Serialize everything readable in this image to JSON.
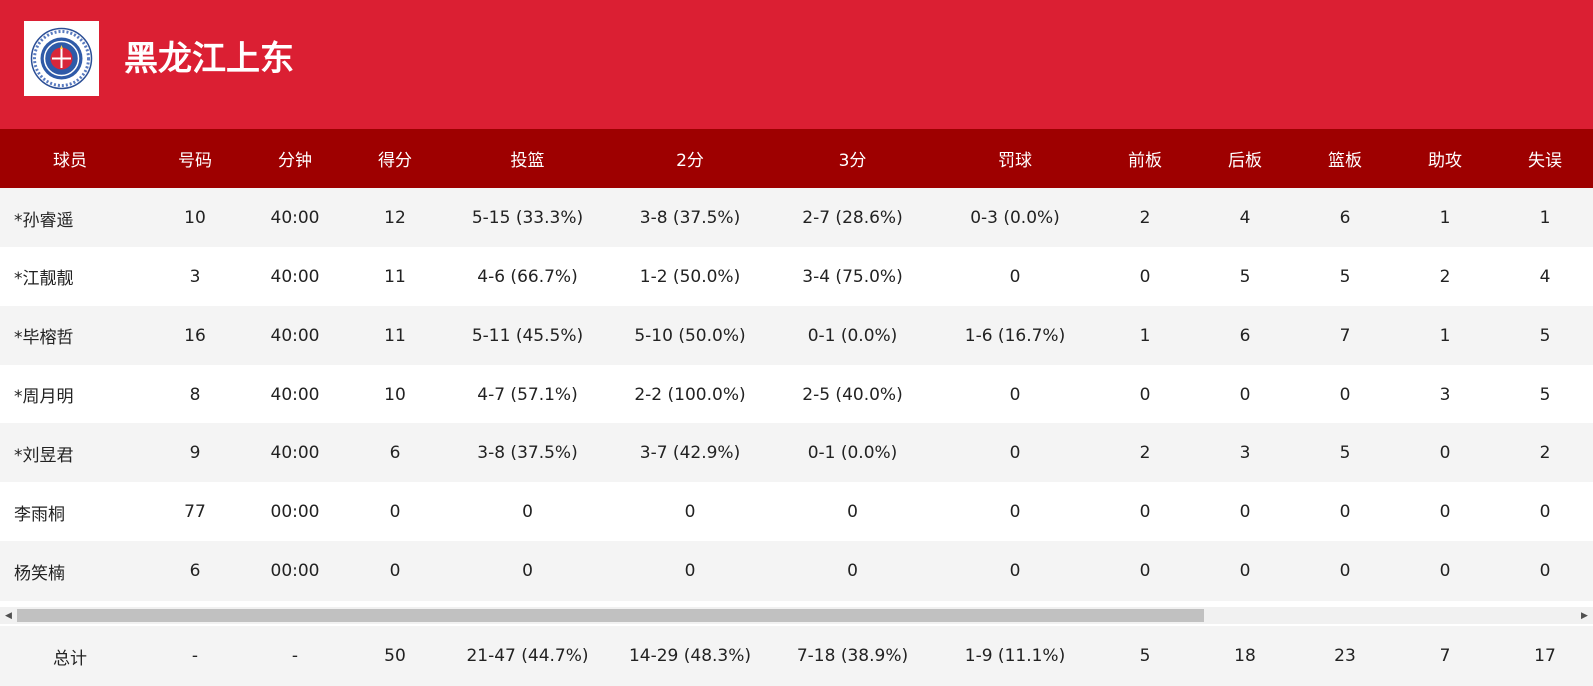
{
  "team": {
    "name": "黑龙江上东",
    "logo_icon": "team-crest-icon",
    "header_color": "#db1f33"
  },
  "table": {
    "header_color": "#9e0000",
    "columns": [
      "球员",
      "号码",
      "分钟",
      "得分",
      "投篮",
      "2分",
      "3分",
      "罚球",
      "前板",
      "后板",
      "篮板",
      "助攻",
      "失误"
    ],
    "rows": [
      [
        "*孙睿遥",
        "10",
        "40:00",
        "12",
        "5-15 (33.3%)",
        "3-8 (37.5%)",
        "2-7 (28.6%)",
        "0-3 (0.0%)",
        "2",
        "4",
        "6",
        "1",
        "1"
      ],
      [
        "*江靓靓",
        "3",
        "40:00",
        "11",
        "4-6 (66.7%)",
        "1-2 (50.0%)",
        "3-4 (75.0%)",
        "0",
        "0",
        "5",
        "5",
        "2",
        "4"
      ],
      [
        "*毕榕哲",
        "16",
        "40:00",
        "11",
        "5-11 (45.5%)",
        "5-10 (50.0%)",
        "0-1 (0.0%)",
        "1-6 (16.7%)",
        "1",
        "6",
        "7",
        "1",
        "5"
      ],
      [
        "*周月明",
        "8",
        "40:00",
        "10",
        "4-7 (57.1%)",
        "2-2 (100.0%)",
        "2-5 (40.0%)",
        "0",
        "0",
        "0",
        "0",
        "3",
        "5"
      ],
      [
        "*刘昱君",
        "9",
        "40:00",
        "6",
        "3-8 (37.5%)",
        "3-7 (42.9%)",
        "0-1 (0.0%)",
        "0",
        "2",
        "3",
        "5",
        "0",
        "2"
      ],
      [
        "李雨桐",
        "77",
        "00:00",
        "0",
        "0",
        "0",
        "0",
        "0",
        "0",
        "0",
        "0",
        "0",
        "0"
      ],
      [
        "杨笑楠",
        "6",
        "00:00",
        "0",
        "0",
        "0",
        "0",
        "0",
        "0",
        "0",
        "0",
        "0",
        "0"
      ]
    ],
    "totals": [
      "总计",
      "-",
      "-",
      "50",
      "21-47 (44.7%)",
      "14-29 (48.3%)",
      "7-18 (38.9%)",
      "1-9 (11.1%)",
      "5",
      "18",
      "23",
      "7",
      "17"
    ]
  },
  "scrollbar": {
    "left_arrow_icon": "scroll-left-arrow-icon",
    "right_arrow_icon": "scroll-right-arrow-icon",
    "position": 0
  }
}
